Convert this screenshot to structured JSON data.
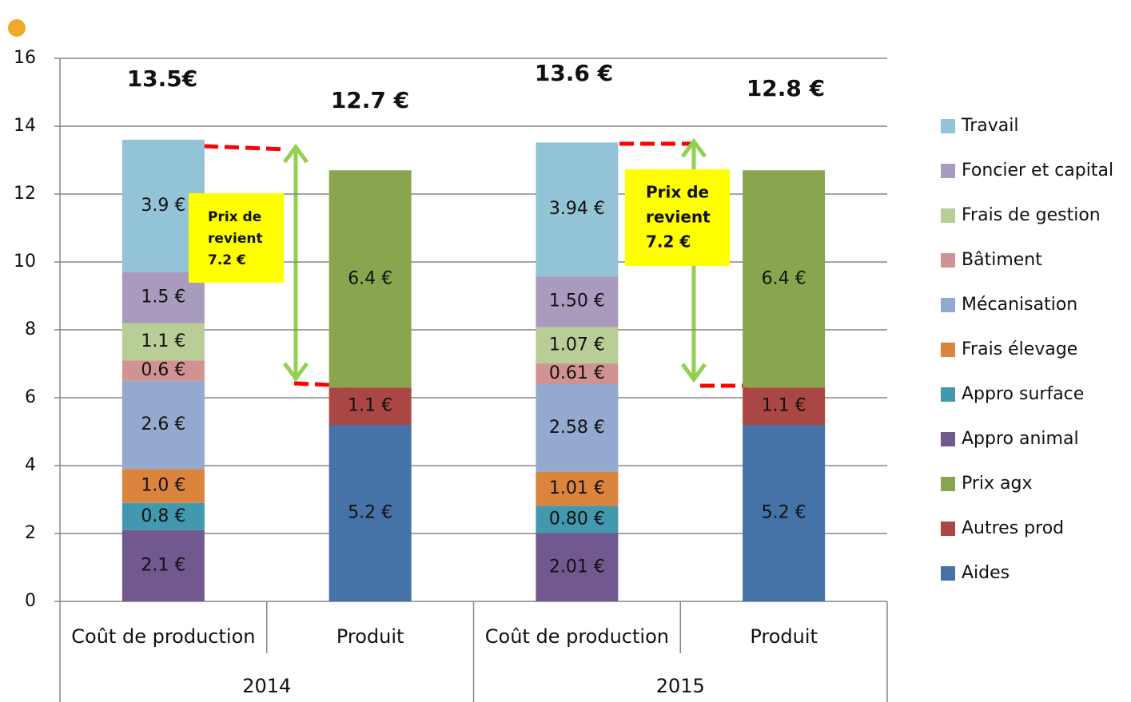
{
  "chart_data": {
    "type": "stacked_bar",
    "categories": [
      "Coût de production",
      "Produit",
      "Coût de production",
      "Produit"
    ],
    "groups": [
      "2014",
      "2015"
    ],
    "ylim": [
      0,
      16
    ],
    "yticks": [
      0,
      2,
      4,
      6,
      8,
      10,
      12,
      14,
      16
    ],
    "grid": true,
    "legend": "right",
    "series": [
      {
        "name": "Aides",
        "color": "#4572a7",
        "values": [
          null,
          5.2,
          null,
          5.2
        ],
        "value_labels": [
          null,
          "5.2 €",
          null,
          "5.2 €"
        ]
      },
      {
        "name": "Autres prod",
        "color": "#aa4643",
        "values": [
          null,
          1.1,
          null,
          1.1
        ],
        "value_labels": [
          null,
          "1.1 €",
          null,
          "1.1 €"
        ]
      },
      {
        "name": "Prix agx",
        "color": "#89a54e",
        "values": [
          null,
          6.4,
          null,
          6.4
        ],
        "value_labels": [
          null,
          "6.4 €",
          null,
          "6.4 €"
        ]
      },
      {
        "name": "Appro animal",
        "color": "#71588f",
        "values": [
          2.1,
          null,
          2.01,
          null
        ],
        "value_labels": [
          "2.1 €",
          null,
          "2.01 €",
          null
        ]
      },
      {
        "name": "Appro surface",
        "color": "#4198af",
        "values": [
          0.8,
          null,
          0.8,
          null
        ],
        "value_labels": [
          "0.8 €",
          null,
          "0.80 €",
          null
        ]
      },
      {
        "name": "Frais élevage",
        "color": "#db843d",
        "values": [
          1.0,
          null,
          1.01,
          null
        ],
        "value_labels": [
          "1.0 €",
          null,
          "1.01 €",
          null
        ]
      },
      {
        "name": "Mécanisation",
        "color": "#93a9cf",
        "values": [
          2.6,
          null,
          2.58,
          null
        ],
        "value_labels": [
          "2.6 €",
          null,
          "2.58 €",
          null
        ]
      },
      {
        "name": "Bâtiment",
        "color": "#d19392",
        "values": [
          0.6,
          null,
          0.61,
          null
        ],
        "value_labels": [
          "0.6 €",
          null,
          "0.61 €",
          null
        ]
      },
      {
        "name": "Frais de gestion",
        "color": "#b9cd96",
        "values": [
          1.1,
          null,
          1.07,
          null
        ],
        "value_labels": [
          "1.1 €",
          null,
          "1.07 €",
          null
        ]
      },
      {
        "name": "Foncier et capital",
        "color": "#a99bbd",
        "values": [
          1.5,
          null,
          1.5,
          null
        ],
        "value_labels": [
          "1.5 €",
          null,
          "1.50 €",
          null
        ]
      },
      {
        "name": "Travail",
        "color": "#92c3d6",
        "values": [
          3.9,
          null,
          3.94,
          null
        ],
        "value_labels": [
          "3.9 €",
          null,
          "3.94 €",
          null
        ]
      }
    ],
    "annotations": {
      "totals": [
        "13.5€",
        "12.7 €",
        "13.6 €",
        "12.8 €"
      ],
      "prix_de_revient": [
        [
          "Prix de",
          "revient",
          "7.2 €"
        ],
        [
          "Prix de",
          "revient",
          "7.2 €"
        ]
      ]
    }
  }
}
